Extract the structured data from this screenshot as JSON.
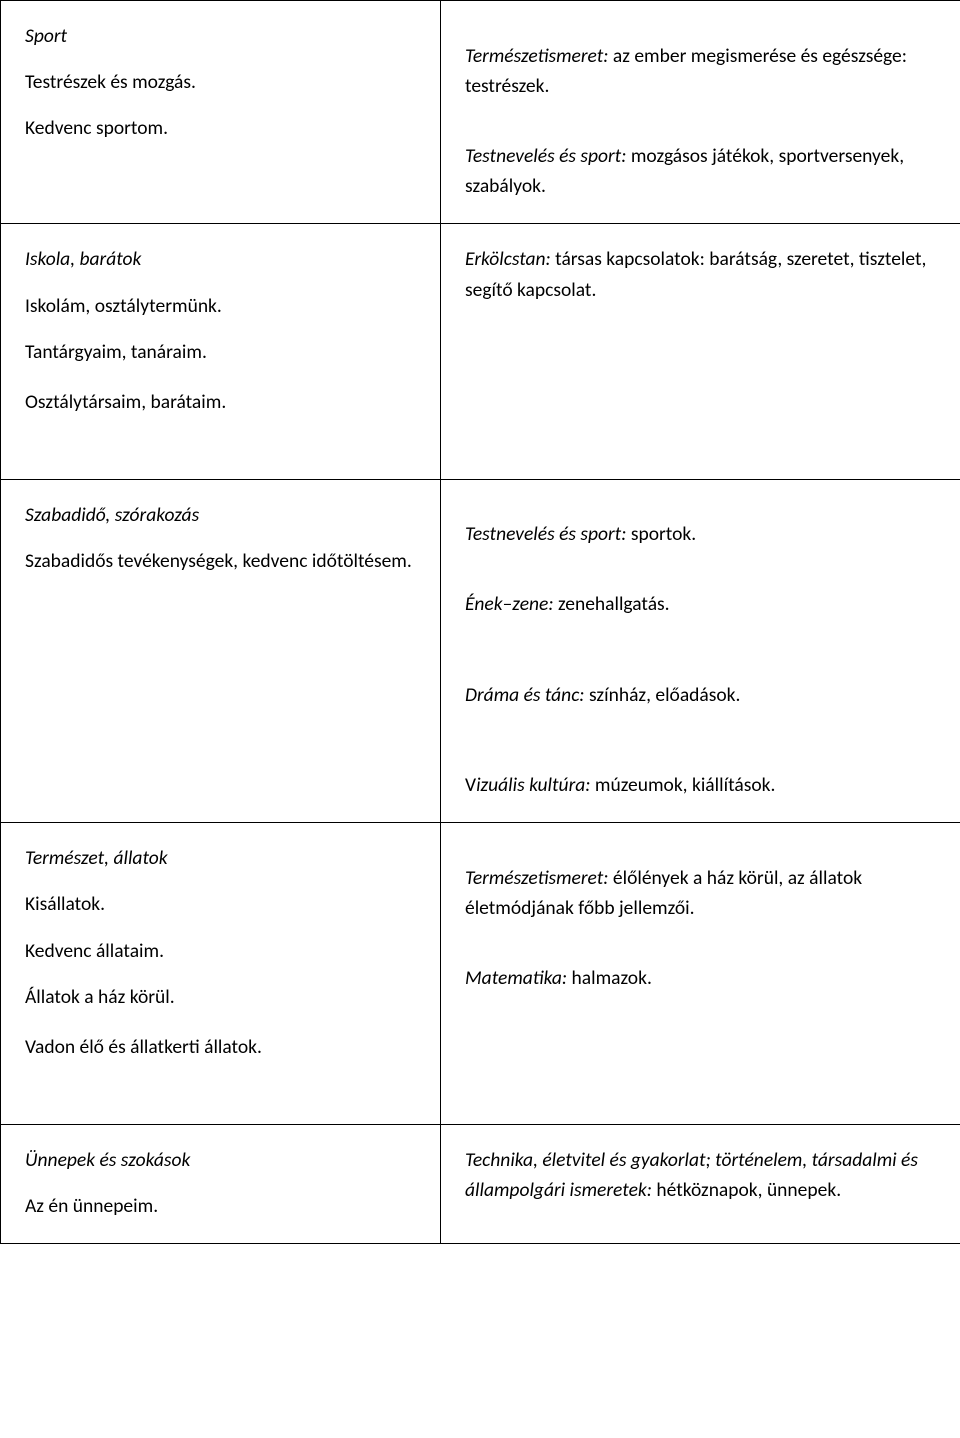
{
  "rows": [
    {
      "left": [
        {
          "text": "Sport",
          "italic": true,
          "gap": "para"
        },
        {
          "text": "Testrészek és mozgás.",
          "italic": false,
          "gap": "para"
        },
        {
          "text": "Kedvenc sportom.",
          "italic": false,
          "gap": "para"
        }
      ],
      "right": [
        {
          "prefix": "Természetismeret:",
          "rest": " az ember megismerése és egészsége: testrészek.",
          "gap": "gap-md"
        },
        {
          "prefix": "Testnevelés és sport:",
          "rest": " mozgásos játékok, sportversenyek, szabályok.",
          "gap": "para"
        }
      ]
    },
    {
      "left": [
        {
          "text": "Iskola, barátok",
          "italic": true,
          "gap": "para"
        },
        {
          "text": "Iskolám, osztálytermünk.",
          "italic": false,
          "gap": "para"
        },
        {
          "text": "Tantárgyaim, tanáraim.",
          "italic": false,
          "gap": "para"
        },
        {
          "text": "Osztálytársaim, barátaim.",
          "italic": false,
          "gap": "gap-md"
        }
      ],
      "right": [
        {
          "prefix": "Erkölcstan:",
          "rest": " társas kapcsolatok: barátság, szeretet, tisztelet, segítő kapcsolat.",
          "gap": "para"
        }
      ]
    },
    {
      "left": [
        {
          "text": "Szabadidő, szórakozás",
          "italic": true,
          "gap": "para"
        },
        {
          "text": "Szabadidős tevékenységek, kedvenc időtöltésem.",
          "italic": false,
          "gap": "para"
        }
      ],
      "right": [
        {
          "prefix": "Testnevelés és sport:",
          "rest": " sportok.",
          "gap": "gap-md"
        },
        {
          "prefix": "Ének–zene:",
          "rest": " zenehallgatás.",
          "gap": "gap-lg"
        },
        {
          "prefix": "Dráma és tánc:",
          "rest": " színház, előadások.",
          "gap": "gap-lg"
        },
        {
          "prefix": "Vizuális kultúra:",
          "rest_prefix_normal": "V",
          "rest": " múzeumok, kiállítások.",
          "gap": "para"
        }
      ]
    },
    {
      "left": [
        {
          "text": "Természet, állatok",
          "italic": true,
          "gap": "para"
        },
        {
          "text": "Kisállatok.",
          "italic": false,
          "gap": "para"
        },
        {
          "text": "Kedvenc állataim.",
          "italic": false,
          "gap": "para"
        },
        {
          "text": "Állatok a ház körül.",
          "italic": false,
          "gap": "para"
        },
        {
          "text": "Vadon élő és állatkerti állatok.",
          "italic": false,
          "gap": "gap-md"
        }
      ],
      "right": [
        {
          "prefix": "Természetismeret:",
          "rest": " élőlények a ház körül, az állatok életmódjának főbb jellemzői.",
          "gap": "gap-md"
        },
        {
          "prefix": "Matematika:",
          "rest": " halmazok.",
          "gap": "para"
        }
      ]
    },
    {
      "left": [
        {
          "text": "Ünnepek és szokások",
          "italic": true,
          "gap": "para"
        },
        {
          "text": "Az én ünnepeim.",
          "italic": false,
          "gap": "para"
        }
      ],
      "right": [
        {
          "prefix": "Technika, életvitel és gyakorlat; történelem, társadalmi és állampolgári ismeretek:",
          "rest": " hétköznapok, ünnepek.",
          "gap": "para"
        }
      ]
    }
  ]
}
